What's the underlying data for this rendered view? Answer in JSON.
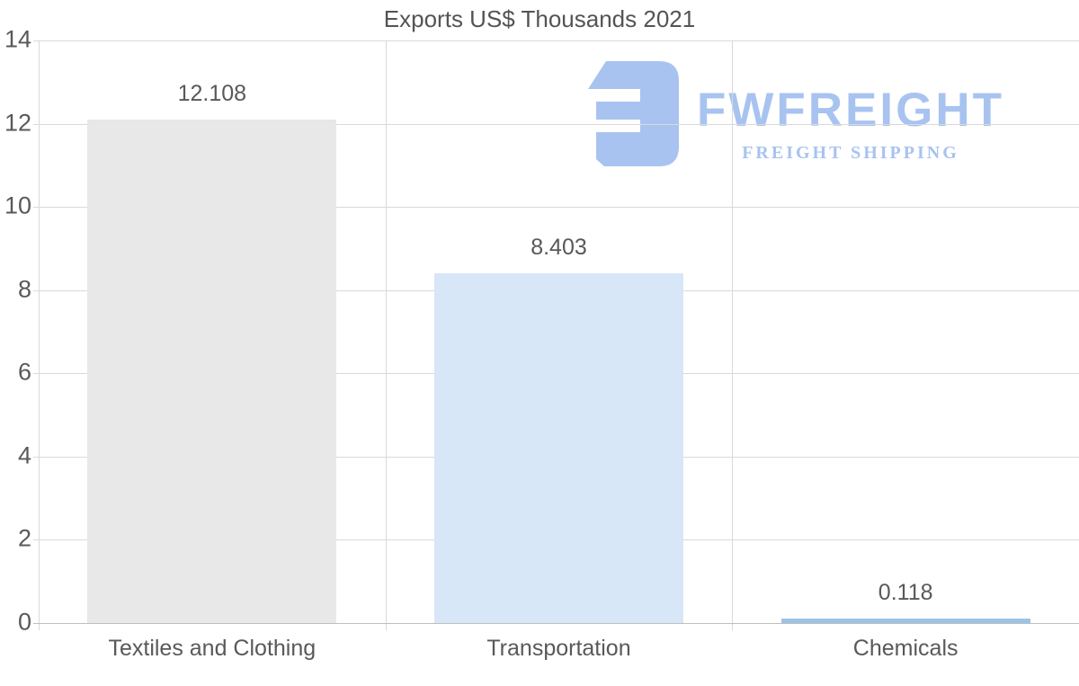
{
  "title": "Exports US$ Thousands 2021",
  "logo": {
    "name": "FWFREIGHT",
    "tagline": "FREIGHT SHIPPING",
    "color": "#a8c3f0"
  },
  "chart_data": {
    "type": "bar",
    "title": "Exports US$ Thousands 2021",
    "categories": [
      "Textiles and Clothing",
      "Transportation",
      "Chemicals"
    ],
    "values": [
      12.108,
      8.403,
      0.118
    ],
    "value_labels": [
      "12.108",
      "8.403",
      "0.118"
    ],
    "bar_colors": [
      "#e8e8e8",
      "#d8e7f7",
      "#9dc3e6"
    ],
    "xlabel": "",
    "ylabel": "",
    "ylim": [
      0,
      14
    ],
    "yticks": [
      0,
      2,
      4,
      6,
      8,
      10,
      12,
      14
    ],
    "grid": true,
    "legend": false,
    "label_color": "#595959"
  }
}
